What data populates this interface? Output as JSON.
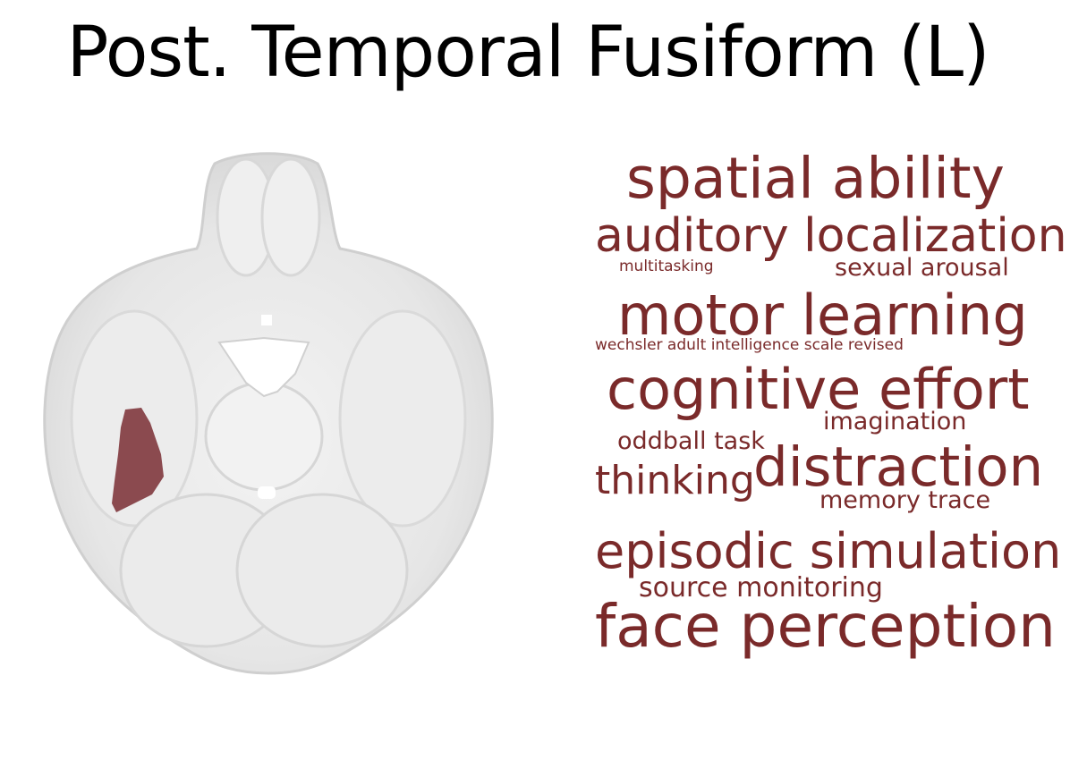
{
  "title": "Post. Temporal Fusiform (L)",
  "colors": {
    "term": "#7a2a2a",
    "highlight": "#8b4a4f",
    "brain": "#e9e9e9"
  },
  "brain_image": {
    "region_highlighted": "Post. Temporal Fusiform (L)"
  },
  "terms": {
    "spatial_ability": "spatial ability",
    "auditory_localization": "auditory localization",
    "multitasking": "multitasking",
    "sexual_arousal": "sexual arousal",
    "motor_learning": "motor learning",
    "wechsler": "wechsler adult intelligence scale revised",
    "cognitive_effort": "cognitive effort",
    "imagination": "imagination",
    "oddball_task": "oddball task",
    "thinking": "thinking",
    "distraction": "distraction",
    "memory_trace": "memory trace",
    "episodic_simulation": "episodic simulation",
    "source_monitoring": "source monitoring",
    "face_perception": "face perception"
  }
}
